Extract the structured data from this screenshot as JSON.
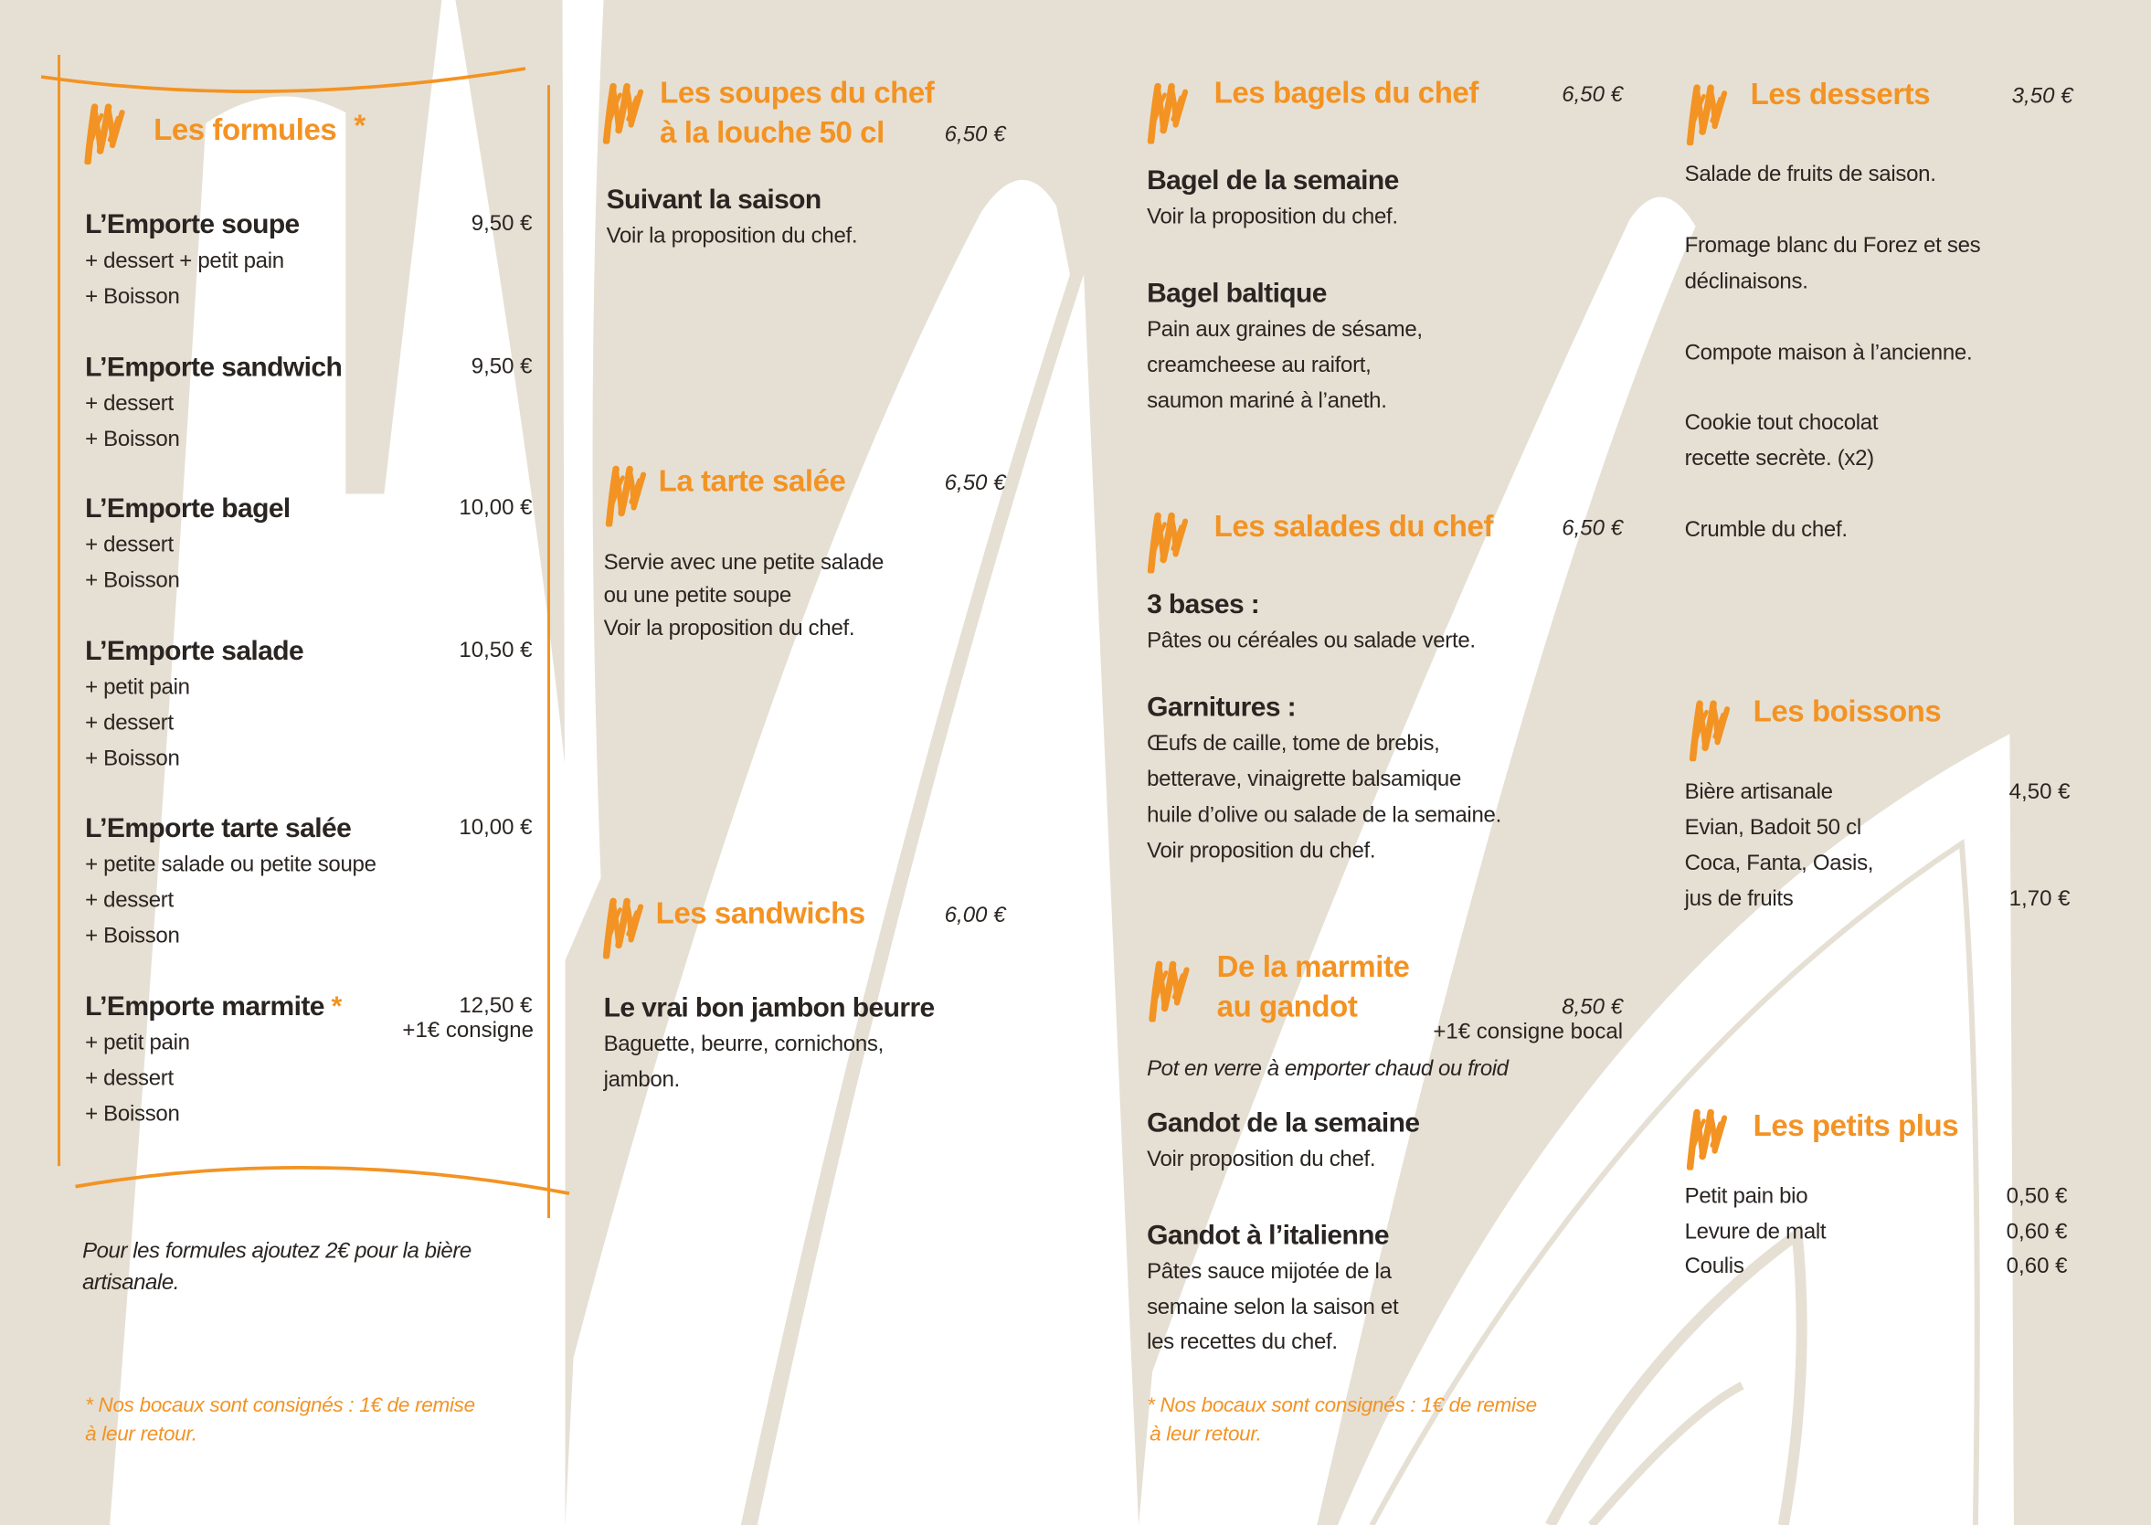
{
  "colors": {
    "accent": "#f39323",
    "background": "#e6e0d4",
    "text": "#2a2522"
  },
  "icons": {
    "section_icon": "brush-stroke-icon"
  },
  "formules": {
    "title": "Les formules",
    "asterisk": "*",
    "items": [
      {
        "name": "L’Emporte soupe",
        "price": "9,50 €",
        "lines": [
          "+ dessert + petit pain",
          "+ Boisson"
        ]
      },
      {
        "name": "L’Emporte sandwich",
        "price": "9,50 €",
        "lines": [
          "+ dessert",
          "+ Boisson"
        ]
      },
      {
        "name": "L’Emporte bagel",
        "price": "10,00 €",
        "lines": [
          "+ dessert",
          "+ Boisson"
        ]
      },
      {
        "name": "L’Emporte salade",
        "price": "10,50 €",
        "lines": [
          "+ petit pain",
          "+ dessert",
          "+ Boisson"
        ]
      },
      {
        "name": "L’Emporte tarte salée",
        "price": "10,00 €",
        "lines": [
          "+ petite salade ou petite soupe",
          "+ dessert",
          "+ Boisson"
        ]
      },
      {
        "name": "L’Emporte marmite",
        "asterisk": "*",
        "price": "12,50 €",
        "consigne": "+1€ consigne",
        "lines": [
          "+ petit pain",
          "+ dessert",
          "+ Boisson"
        ]
      }
    ],
    "note": [
      "Pour les formules ajoutez 2€ pour la bière",
      "artisanale."
    ],
    "footnote": [
      "* Nos bocaux sont consignés : 1€ de remise",
      "à leur retour."
    ]
  },
  "soupes": {
    "title": [
      "Les soupes du chef",
      "à la louche 50 cl"
    ],
    "price": "6,50 €",
    "heading": "Suivant la saison",
    "lines": [
      "Voir la proposition du chef."
    ]
  },
  "tarte": {
    "title": "La tarte salée",
    "price": "6,50 €",
    "lines": [
      "Servie avec une petite salade",
      "ou une petite soupe",
      "Voir la proposition du chef."
    ]
  },
  "sandwichs": {
    "title": "Les sandwichs",
    "price": "6,00 €",
    "heading": "Le vrai bon jambon beurre",
    "lines": [
      "Baguette, beurre, cornichons,",
      "jambon."
    ]
  },
  "bagels": {
    "title": "Les bagels du chef",
    "price": "6,50 €",
    "items": [
      {
        "name": "Bagel de la semaine",
        "lines": [
          "Voir la proposition du chef."
        ]
      },
      {
        "name": "Bagel baltique",
        "lines": [
          "Pain aux graines de sésame,",
          "creamcheese au raifort,",
          "saumon mariné à l’aneth."
        ]
      }
    ]
  },
  "salades": {
    "title": "Les salades du chef",
    "price": "6,50 €",
    "items": [
      {
        "name": "3 bases :",
        "lines": [
          "Pâtes ou céréales ou salade verte."
        ]
      },
      {
        "name": "Garnitures :",
        "lines": [
          "Œufs de caille, tome de brebis,",
          "betterave, vinaigrette balsamique",
          "huile d’olive ou salade de la semaine.",
          "Voir proposition du chef."
        ]
      }
    ]
  },
  "marmite": {
    "title": [
      "De la marmite",
      "au gandot"
    ],
    "price": "8,50 €",
    "consigne": "+1€ consigne bocal",
    "subtitle": "Pot en verre à emporter chaud ou froid",
    "items": [
      {
        "name": "Gandot de la semaine",
        "lines": [
          "Voir proposition du chef."
        ]
      },
      {
        "name": "Gandot à l’italienne",
        "lines": [
          "Pâtes sauce mijotée de la",
          "semaine selon la saison et",
          "les recettes du chef."
        ]
      }
    ],
    "footnote": [
      "* Nos bocaux sont consignés : 1€ de remise",
      "à leur retour."
    ]
  },
  "desserts": {
    "title": "Les desserts",
    "price": "3,50 €",
    "items": [
      [
        "Salade de fruits de saison."
      ],
      [
        "Fromage blanc du Forez et ses",
        "déclinaisons."
      ],
      [
        "Compote maison à l’ancienne."
      ],
      [
        "Cookie tout chocolat",
        "recette secrète. (x2)"
      ],
      [
        "Crumble du chef."
      ]
    ]
  },
  "boissons": {
    "title": "Les boissons",
    "rows": [
      {
        "label": "Bière artisanale",
        "price": "4,50 €"
      },
      {
        "label": "Evian, Badoit 50 cl"
      },
      {
        "label": "Coca, Fanta, Oasis,"
      },
      {
        "label": "jus de fruits",
        "price": "1,70 €"
      }
    ]
  },
  "petits_plus": {
    "title": "Les petits plus",
    "rows": [
      {
        "label": "Petit pain bio",
        "price": "0,50 €"
      },
      {
        "label": "Levure de malt",
        "price": "0,60 €"
      },
      {
        "label": "Coulis",
        "price": "0,60 €"
      }
    ]
  }
}
